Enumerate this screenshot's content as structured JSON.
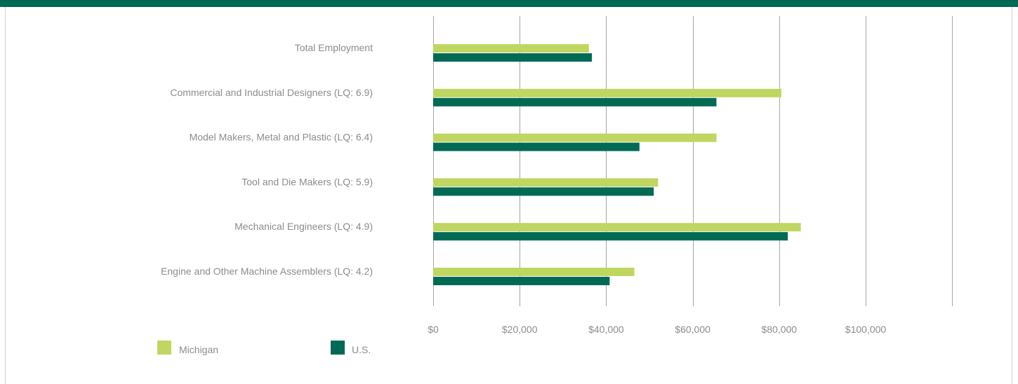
{
  "colors": {
    "header_band": "#006a55",
    "michigan": "#bfd661",
    "us": "#006a55",
    "gridline": "#a6a6a6",
    "label_text": "#8c8c8c"
  },
  "chart_data": {
    "type": "bar",
    "orientation": "horizontal",
    "categories": [
      "Total Employment",
      "Commercial and Industrial Designers (LQ: 6.9)",
      "Model Makers, Metal and Plastic (LQ: 6.4)",
      "Tool and Die Makers (LQ: 5.9)",
      "Mechanical Engineers (LQ: 4.9)",
      "Engine and Other Machine Assemblers (LQ: 4.2)"
    ],
    "series": [
      {
        "name": "Michigan",
        "color": "#bfd661",
        "values": [
          36000,
          80500,
          65500,
          52000,
          85000,
          46500
        ]
      },
      {
        "name": "U.S.",
        "color": "#006a55",
        "values": [
          36700,
          65500,
          47700,
          51000,
          82000,
          40800
        ]
      }
    ],
    "xticks": [
      "$0",
      "$20,000",
      "$40,000",
      "$60,000",
      "$80,000",
      "$100,000"
    ],
    "xtick_values": [
      0,
      20000,
      40000,
      60000,
      80000,
      100000
    ],
    "xlim": [
      0,
      100000
    ],
    "title": "",
    "xlabel": "",
    "ylabel": "",
    "grid": "vertical",
    "legend_position": "bottom-left"
  }
}
